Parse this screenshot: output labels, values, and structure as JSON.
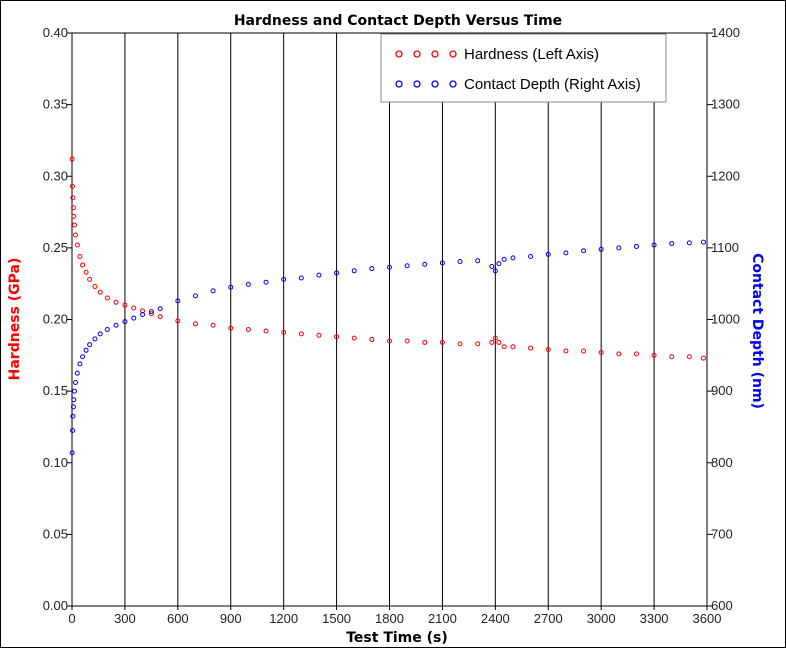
{
  "colors": {
    "hardness": "#ff0000",
    "depth": "#0000ff",
    "grid": "#000000",
    "background": "#ffffff"
  },
  "chart_data": {
    "type": "scatter",
    "title": "Hardness and Contact Depth Versus Time",
    "xlabel": "Test Time (s)",
    "ylabel_left": "Hardness (GPa)",
    "ylabel_right": "Contact Depth (nm)",
    "xlim": [
      0,
      3600
    ],
    "ylim_left": [
      0,
      0.4
    ],
    "ylim_right": [
      600,
      1400
    ],
    "x_ticks": [
      "0",
      "300",
      "600",
      "900",
      "1200",
      "1500",
      "1800",
      "2100",
      "2400",
      "2700",
      "3000",
      "3300",
      "3600"
    ],
    "y_left_ticks": [
      "0.00",
      "0.05",
      "0.10",
      "0.15",
      "0.20",
      "0.25",
      "0.30",
      "0.35",
      "0.40"
    ],
    "y_right_ticks": [
      "600",
      "700",
      "800",
      "900",
      "1000",
      "1100",
      "1200",
      "1300",
      "1400"
    ],
    "grid": true,
    "legend_position": "top-right",
    "series": [
      {
        "name": "Hardness (Left Axis)",
        "axis": "left",
        "color": "#ff0000",
        "x": [
          1,
          3,
          5,
          8,
          10,
          14,
          20,
          30,
          45,
          60,
          80,
          100,
          130,
          160,
          200,
          250,
          300,
          350,
          400,
          450,
          500,
          600,
          700,
          800,
          900,
          1000,
          1100,
          1200,
          1300,
          1400,
          1500,
          1600,
          1700,
          1800,
          1900,
          2000,
          2100,
          2200,
          2300,
          2380,
          2400,
          2420,
          2450,
          2500,
          2600,
          2700,
          2800,
          2900,
          3000,
          3100,
          3200,
          3300,
          3400,
          3500,
          3580
        ],
        "y": [
          0.312,
          0.293,
          0.285,
          0.278,
          0.272,
          0.266,
          0.259,
          0.252,
          0.244,
          0.238,
          0.233,
          0.228,
          0.223,
          0.219,
          0.215,
          0.212,
          0.21,
          0.208,
          0.206,
          0.204,
          0.202,
          0.199,
          0.197,
          0.196,
          0.194,
          0.193,
          0.192,
          0.191,
          0.19,
          0.189,
          0.188,
          0.187,
          0.186,
          0.185,
          0.185,
          0.184,
          0.184,
          0.183,
          0.183,
          0.184,
          0.187,
          0.184,
          0.181,
          0.181,
          0.18,
          0.179,
          0.178,
          0.178,
          0.177,
          0.176,
          0.176,
          0.175,
          0.174,
          0.174,
          0.173
        ]
      },
      {
        "name": "Contact Depth (Right Axis)",
        "axis": "right",
        "color": "#0000ff",
        "x": [
          1,
          3,
          5,
          8,
          10,
          14,
          20,
          30,
          45,
          60,
          80,
          100,
          130,
          160,
          200,
          250,
          300,
          350,
          400,
          450,
          500,
          600,
          700,
          800,
          900,
          1000,
          1100,
          1200,
          1300,
          1400,
          1500,
          1600,
          1700,
          1800,
          1900,
          2000,
          2100,
          2200,
          2300,
          2380,
          2400,
          2420,
          2450,
          2500,
          2600,
          2700,
          2800,
          2900,
          3000,
          3100,
          3200,
          3300,
          3400,
          3500,
          3580
        ],
        "y": [
          814,
          845,
          865,
          878,
          888,
          900,
          912,
          925,
          938,
          948,
          957,
          965,
          973,
          980,
          986,
          992,
          997,
          1002,
          1007,
          1011,
          1015,
          1026,
          1033,
          1040,
          1045,
          1049,
          1052,
          1056,
          1058,
          1062,
          1065,
          1068,
          1071,
          1073,
          1075,
          1077,
          1079,
          1081,
          1082,
          1074,
          1068,
          1078,
          1084,
          1086,
          1088,
          1091,
          1093,
          1096,
          1098,
          1100,
          1102,
          1104,
          1106,
          1107,
          1108
        ]
      }
    ]
  }
}
